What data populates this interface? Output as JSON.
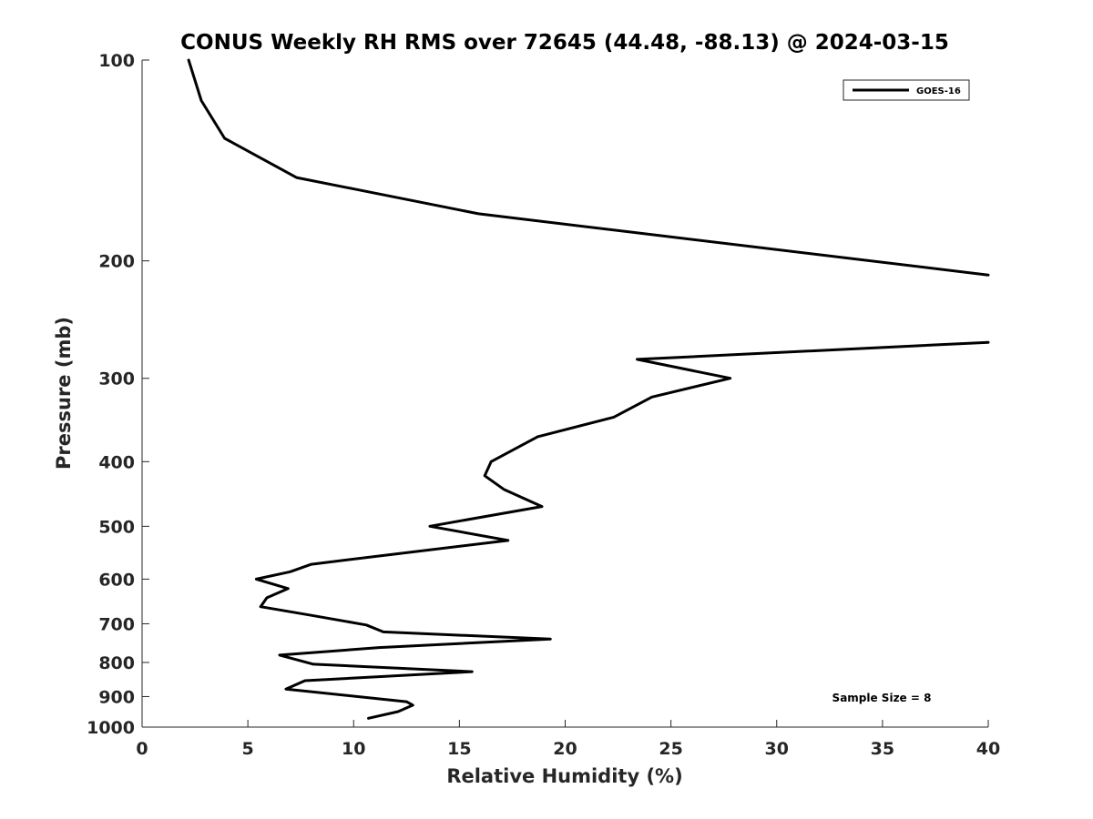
{
  "chart_data": {
    "type": "line",
    "title": "CONUS Weekly RH RMS over 72645 (44.48, -88.13) @ 2024-03-15",
    "xlabel": "Relative Humidity (%)",
    "ylabel": "Pressure (mb)",
    "xlim": [
      0,
      40
    ],
    "ylim": [
      100,
      1000
    ],
    "y_scale": "log",
    "y_reversed": true,
    "grid": false,
    "legend_position": "top-right",
    "annotation": "Sample Size = 8",
    "x_ticks": [
      "0",
      "5",
      "10",
      "15",
      "20",
      "25",
      "30",
      "35",
      "40"
    ],
    "y_ticks": [
      "100",
      "200",
      "300",
      "400",
      "500",
      "600",
      "700",
      "800",
      "900",
      "1000"
    ],
    "series": [
      {
        "name": "GOES-16",
        "color": "#000000",
        "points": [
          [
            2.2,
            100
          ],
          [
            2.8,
            115
          ],
          [
            3.9,
            131
          ],
          [
            7.3,
            150
          ],
          [
            15.9,
            170
          ],
          [
            40,
            210
          ],
          [
            40,
            265
          ],
          [
            23.4,
            281
          ],
          [
            27.8,
            300
          ],
          [
            24.1,
            320
          ],
          [
            22.3,
            343
          ],
          [
            18.7,
            367
          ],
          [
            16.5,
            400
          ],
          [
            16.2,
            420
          ],
          [
            17.1,
            440
          ],
          [
            18.9,
            467
          ],
          [
            13.6,
            500
          ],
          [
            17.3,
            525
          ],
          [
            12.0,
            550
          ],
          [
            8.0,
            570
          ],
          [
            7.0,
            585
          ],
          [
            5.4,
            600
          ],
          [
            6.9,
            620
          ],
          [
            5.9,
            640
          ],
          [
            5.6,
            660
          ],
          [
            8.0,
            680
          ],
          [
            10.6,
            703
          ],
          [
            11.4,
            720
          ],
          [
            19.3,
            738
          ],
          [
            11.2,
            760
          ],
          [
            6.5,
            780
          ],
          [
            8.1,
            805
          ],
          [
            15.6,
            826
          ],
          [
            7.7,
            852
          ],
          [
            6.8,
            877
          ],
          [
            12.5,
            916
          ],
          [
            12.8,
            927
          ],
          [
            12.1,
            948
          ],
          [
            10.7,
            970
          ]
        ]
      }
    ]
  }
}
